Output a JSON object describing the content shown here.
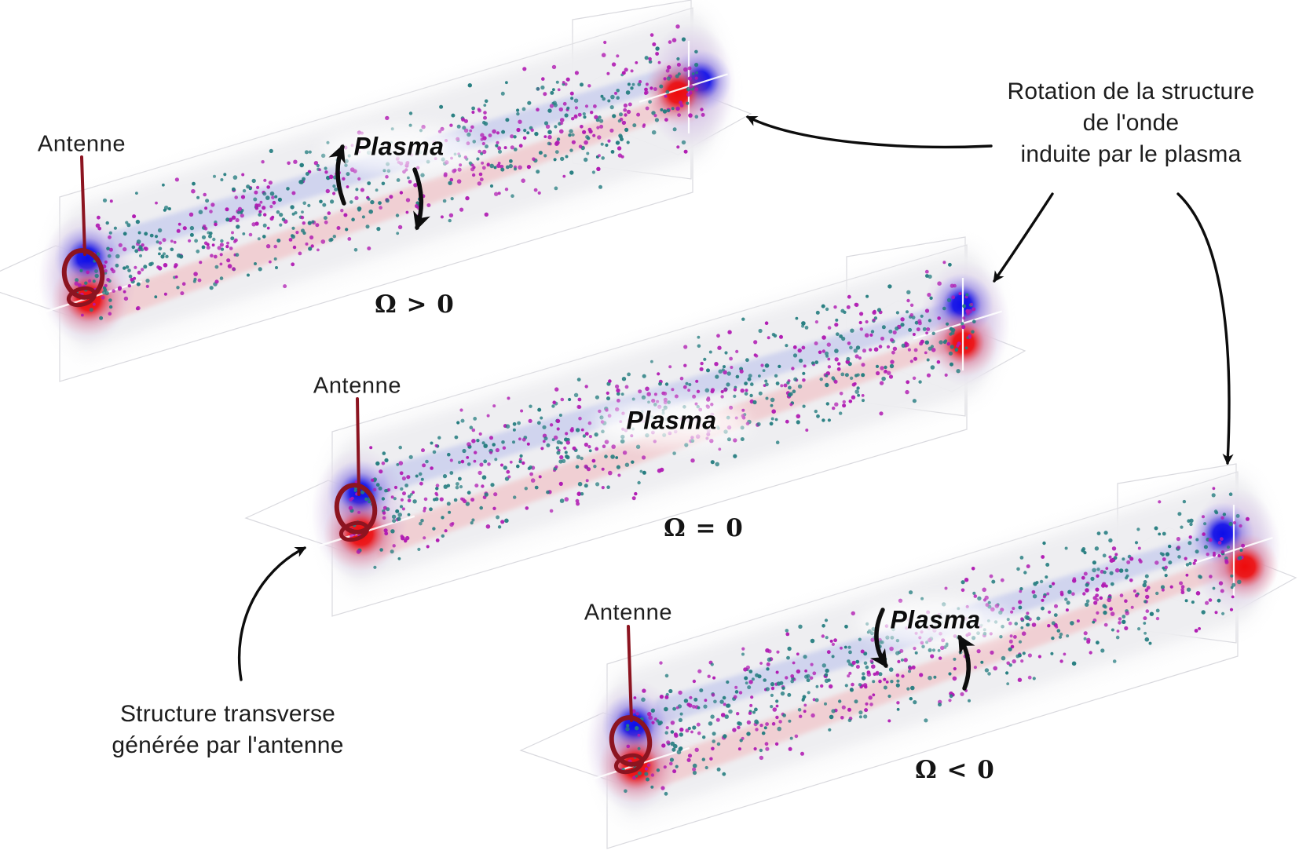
{
  "figure": {
    "panels": [
      {
        "name": "omega-positive",
        "antenna_label": "Antenne",
        "plasma_label": "Plasma",
        "omega_label": "Ω > 0",
        "plasma_rotation": "clockwise"
      },
      {
        "name": "omega-zero",
        "antenna_label": "Antenne",
        "plasma_label": "Plasma",
        "omega_label": "Ω = 0",
        "plasma_rotation": "none"
      },
      {
        "name": "omega-negative",
        "antenna_label": "Antenne",
        "plasma_label": "Plasma",
        "omega_label": "Ω < 0",
        "plasma_rotation": "counterclockwise"
      }
    ],
    "annotations": {
      "rotation_note": {
        "line1": "Rotation de la structure",
        "line2": "de l'onde",
        "line3": "induite par le plasma"
      },
      "antenna_note": {
        "line1": "Structure transverse",
        "line2": "générée par l'antenne"
      }
    },
    "colors": {
      "dot_magenta": "#b01ab2",
      "dot_teal": "#257d80",
      "stripe_blue": "#b8bfec",
      "stripe_pink": "#f2bcc0",
      "column_gray": "#eeeef1",
      "plane_line": "#d9d9de",
      "antenna_red": "#8c1420",
      "lobe_blue": "#0a0ae8",
      "lobe_red": "#ee0707",
      "halo_purple": "#9a55cc",
      "arrow_black": "#0d0d0d",
      "text_color": "#1d1d1d"
    },
    "dots_per_panel": 800
  }
}
